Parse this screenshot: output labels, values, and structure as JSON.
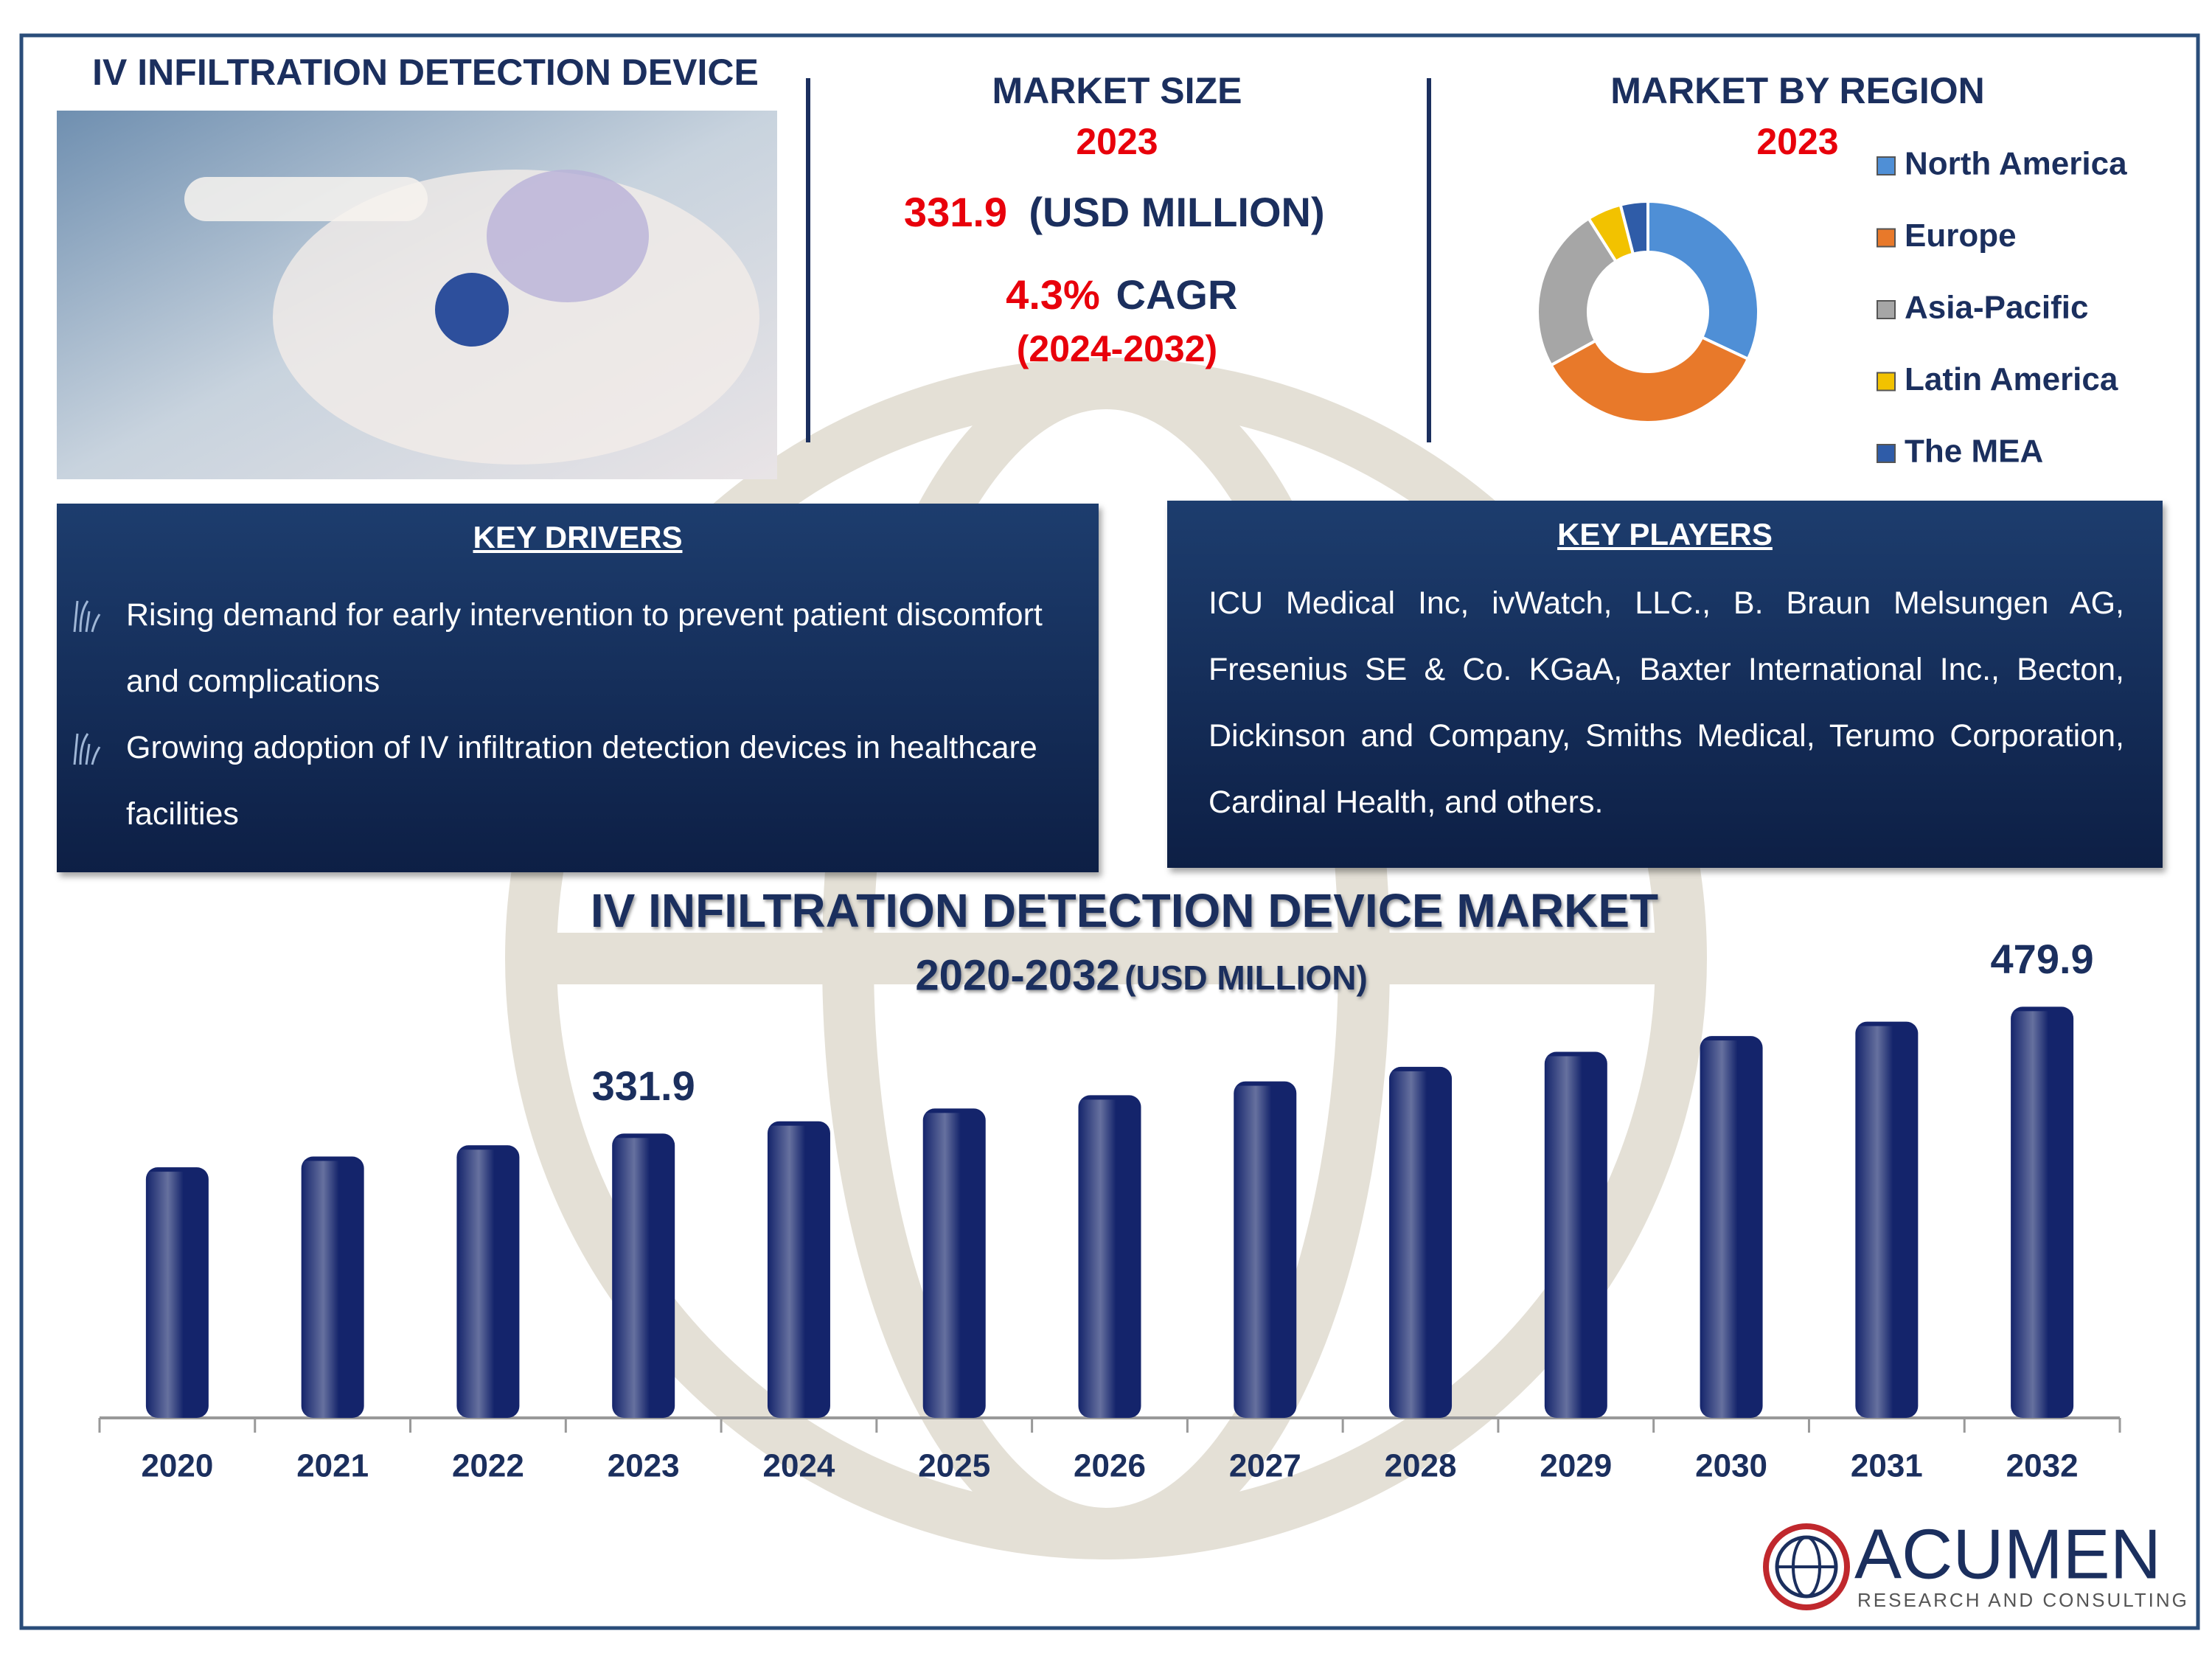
{
  "header": {
    "title": "IV INFILTRATION DETECTION DEVICE"
  },
  "market_size": {
    "title": "MARKET SIZE",
    "year": "2023",
    "value": "331.9",
    "unit": "(USD MILLION)",
    "cagr": "4.3%",
    "cagr_label": "CAGR",
    "period": "(2024-2032)"
  },
  "key_drivers": {
    "title": "KEY DRIVERS",
    "items": [
      "Rising demand for early intervention to prevent patient discomfort and complications",
      "Growing adoption of IV infiltration detection devices in healthcare facilities"
    ]
  },
  "key_players": {
    "title": "KEY PLAYERS",
    "text": "ICU Medical Inc, ivWatch, LLC., B. Braun Melsungen AG, Fresenius SE & Co. KGaA, Baxter International Inc., Becton, Dickinson and Company, Smiths Medical, Terumo Corporation, Cardinal Health, and others."
  },
  "logo": {
    "name": "ACUMEN",
    "tagline": "RESEARCH AND CONSULTING"
  },
  "chart_data": [
    {
      "type": "bar",
      "title": "IV INFILTRATION DETECTION DEVICE MARKET",
      "subtitle": "2020-2032",
      "unit": "(USD MILLION)",
      "categories": [
        "2020",
        "2021",
        "2022",
        "2023",
        "2024",
        "2025",
        "2026",
        "2027",
        "2028",
        "2029",
        "2030",
        "2031",
        "2032"
      ],
      "values": [
        292.5,
        305.1,
        318.2,
        331.9,
        346.2,
        361.1,
        376.6,
        392.8,
        409.7,
        427.3,
        445.7,
        462.5,
        479.9
      ],
      "value_labels": [
        null,
        null,
        null,
        "331.9",
        null,
        null,
        null,
        null,
        null,
        null,
        null,
        null,
        "479.9"
      ],
      "color": "#14246b",
      "ylim": [
        0,
        500
      ]
    },
    {
      "type": "pie",
      "donut": true,
      "title": "MARKET BY REGION",
      "subtitle": "2023",
      "categories": [
        "North America",
        "Europe",
        "Asia-Pacific",
        "Latin America",
        "The MEA"
      ],
      "values": [
        32,
        35,
        24,
        5,
        4
      ],
      "colors": [
        "#4f8fd6",
        "#e8792a",
        "#a6a6a6",
        "#f2c200",
        "#2f5ca8"
      ]
    }
  ]
}
